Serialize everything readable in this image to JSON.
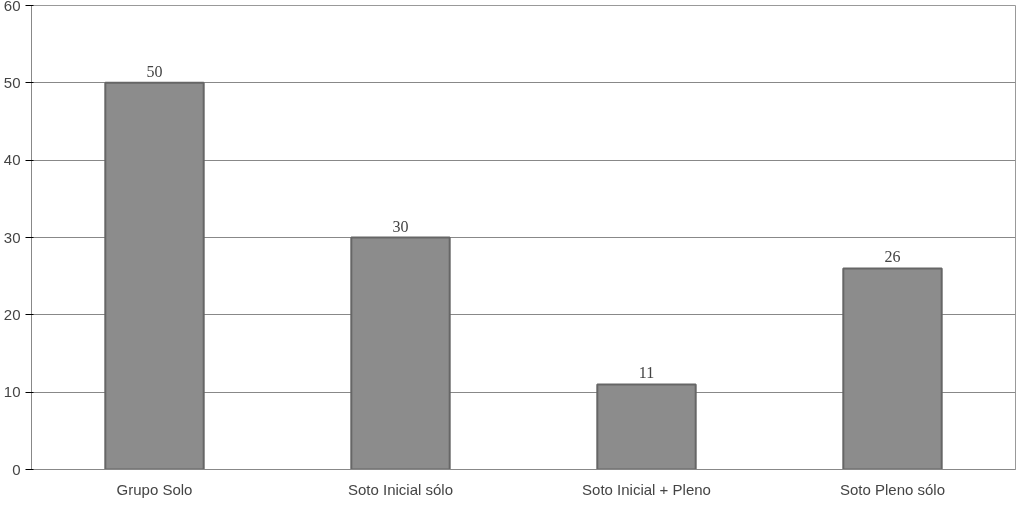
{
  "chart_data": {
    "type": "bar",
    "categories": [
      "Grupo Solo",
      "Soto Inicial sólo",
      "Soto Inicial + Pleno",
      "Soto Pleno sólo"
    ],
    "values": [
      50,
      30,
      11,
      26
    ],
    "color": "#8c8c8c",
    "ylim": [
      0,
      60
    ],
    "yticks": [
      0,
      10,
      20,
      30,
      40,
      50,
      60
    ],
    "grid": "y",
    "data_labels": true
  }
}
